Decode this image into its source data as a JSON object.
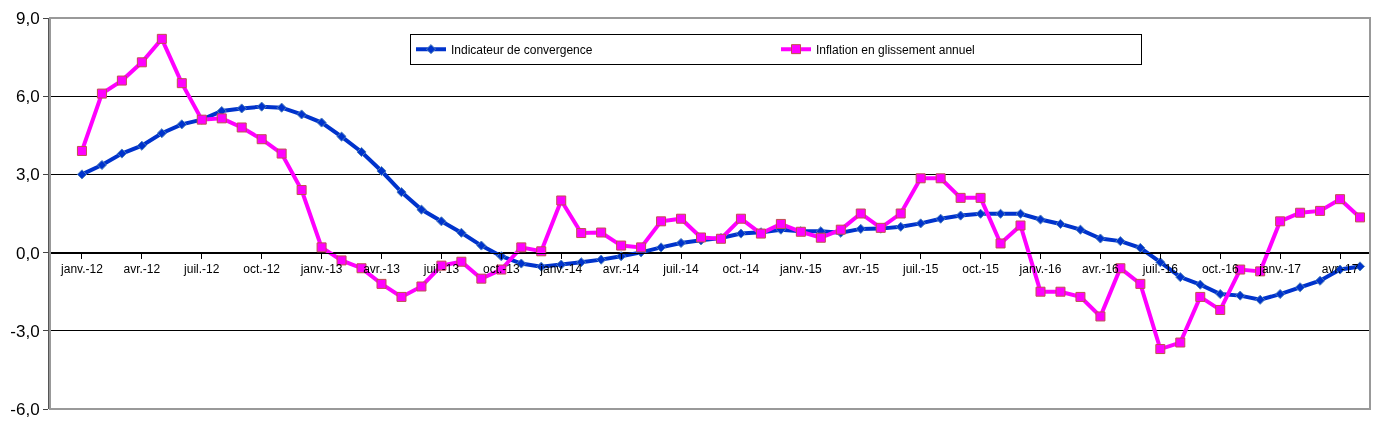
{
  "chart_data": {
    "type": "line",
    "categories": [
      "janv.-12",
      null,
      null,
      "avr.-12",
      null,
      null,
      "juil.-12",
      null,
      null,
      "oct.-12",
      null,
      null,
      "janv.-13",
      null,
      null,
      "avr.-13",
      null,
      null,
      "juil.-13",
      null,
      null,
      "oct.-13",
      null,
      null,
      "janv.-14",
      null,
      null,
      "avr.-14",
      null,
      null,
      "juil.-14",
      null,
      null,
      "oct.-14",
      null,
      null,
      "janv.-15",
      null,
      null,
      "avr.-15",
      null,
      null,
      "juil.-15",
      null,
      null,
      "oct.-15",
      null,
      null,
      "janv.-16",
      null,
      null,
      "avr.-16",
      null,
      null,
      "juil.-16",
      null,
      null,
      "oct.-16",
      null,
      null,
      "janv.-17",
      null,
      null,
      "avr.-17",
      null
    ],
    "series": [
      {
        "name": "Indicateur de convergence",
        "color": "#0033cc",
        "marker": "diamond",
        "values": [
          3.0,
          3.36,
          3.8,
          4.1,
          4.58,
          4.92,
          5.1,
          5.43,
          5.53,
          5.6,
          5.56,
          5.3,
          4.99,
          4.45,
          3.86,
          3.13,
          2.32,
          1.65,
          1.2,
          0.76,
          0.27,
          -0.14,
          -0.42,
          -0.54,
          -0.46,
          -0.37,
          -0.27,
          -0.14,
          0.01,
          0.2,
          0.37,
          0.47,
          0.56,
          0.73,
          0.78,
          0.88,
          0.82,
          0.82,
          0.76,
          0.91,
          0.92,
          0.99,
          1.12,
          1.3,
          1.42,
          1.49,
          1.49,
          1.49,
          1.27,
          1.1,
          0.88,
          0.54,
          0.44,
          0.18,
          -0.37,
          -0.94,
          -1.23,
          -1.59,
          -1.65,
          -1.81,
          -1.59,
          -1.33,
          -1.08,
          -0.65,
          -0.53
        ]
      },
      {
        "name": "Inflation en glissement annuel",
        "color": "#ff00ff",
        "marker": "square",
        "values": [
          3.9,
          6.1,
          6.6,
          7.3,
          8.2,
          6.5,
          5.1,
          5.15,
          4.8,
          4.35,
          3.8,
          2.4,
          0.2,
          -0.3,
          -0.6,
          -1.2,
          -1.7,
          -1.3,
          -0.5,
          -0.35,
          -1.0,
          -0.65,
          0.2,
          0.05,
          2.0,
          0.75,
          0.77,
          0.27,
          0.2,
          1.2,
          1.3,
          0.58,
          0.53,
          1.3,
          0.73,
          1.1,
          0.8,
          0.57,
          0.88,
          1.5,
          0.95,
          1.5,
          2.85,
          2.85,
          2.1,
          2.1,
          0.35,
          1.04,
          -1.5,
          -1.5,
          -1.7,
          -2.45,
          -0.6,
          -1.2,
          -3.7,
          -3.45,
          -1.7,
          -2.2,
          -0.65,
          -0.72,
          1.2,
          1.53,
          1.6,
          2.05,
          1.35
        ]
      }
    ],
    "ylim": [
      -6,
      9
    ],
    "yticks": [
      {
        "value": -6,
        "label": "-6,0"
      },
      {
        "value": -3,
        "label": "-3,0"
      },
      {
        "value": 0,
        "label": "0,0"
      },
      {
        "value": 3,
        "label": "3,0"
      },
      {
        "value": 6,
        "label": "6,0"
      },
      {
        "value": 9,
        "label": "9,0"
      }
    ],
    "grid": "y",
    "legend": "top",
    "line_style": "solid"
  }
}
